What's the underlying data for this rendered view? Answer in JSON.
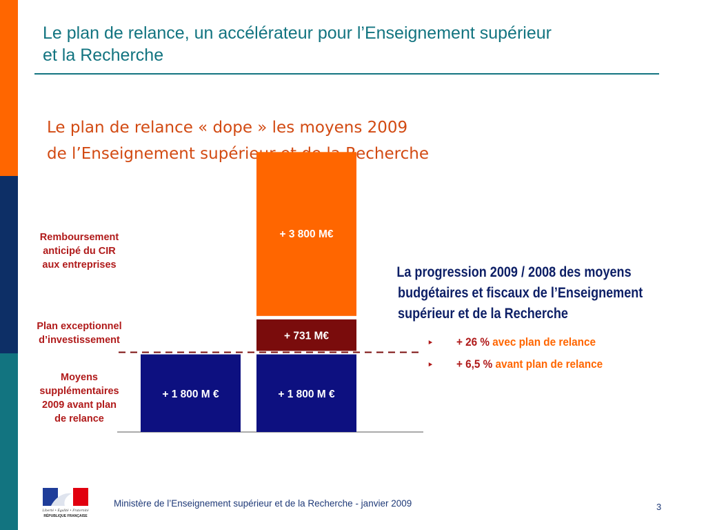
{
  "slide": {
    "title_line1": "Le plan de relance, un accélérateur pour l’Enseignement supérieur",
    "title_line2": "et la Recherche",
    "subtitle_line1": "Le plan de relance « dope » les moyens 2009",
    "subtitle_line2": "de l’Enseignement supérieur et de la Recherche",
    "page_number": "3"
  },
  "colors": {
    "orange": "#ff6600",
    "navy": "#0d2f66",
    "teal": "#127480",
    "bar_navy": "#0d1080",
    "bar_maroon": "#7a0c0c",
    "label_red": "#b01a1a"
  },
  "labels": {
    "cir_line1": "Remboursement",
    "cir_line2": "anticipé du CIR",
    "cir_line3": "aux entreprises",
    "invest_line1": "Plan exceptionnel",
    "invest_line2": "d’investissement",
    "moyens_line1": "Moyens",
    "moyens_line2": "supplémentaires",
    "moyens_line3": "2009 avant plan",
    "moyens_line4": "de relance"
  },
  "progress": {
    "title": "La progression 2009 / 2008 des moyens budgétaires et fiscaux de l’Enseignement supérieur et de la Recherche",
    "bullets": [
      {
        "value": "+ 26 %",
        "desc": "avec plan de relance"
      },
      {
        "value": "+ 6,5 %",
        "desc": "avant plan de relance"
      }
    ]
  },
  "footer": {
    "text": "Ministère de l’Enseignement supérieur et de la Recherche - janvier 2009",
    "logo_line1": "Liberté • Égalité • Fraternité",
    "logo_line2": "RÉPUBLIQUE FRANÇAISE"
  },
  "chart_data": {
    "type": "bar",
    "stacked": true,
    "categories": [
      "",
      ""
    ],
    "series": [
      {
        "values": [
          1800,
          1800
        ],
        "color": "#0d1080"
      },
      {
        "values": [
          0,
          731
        ],
        "color": "#7a0c0c"
      },
      {
        "values": [
          0,
          3800
        ],
        "color": "#ff6600"
      }
    ],
    "data_labels": [
      [
        "+ 1 800 M €",
        "+ 1 800 M €"
      ],
      [
        "",
        "+ 731 M€"
      ],
      [
        "",
        "+ 3 800 M€"
      ]
    ],
    "title": "",
    "xlabel": "",
    "ylabel": "",
    "grid": false,
    "legend": false,
    "reference_line": {
      "value": 1800,
      "style": "dashed"
    }
  }
}
